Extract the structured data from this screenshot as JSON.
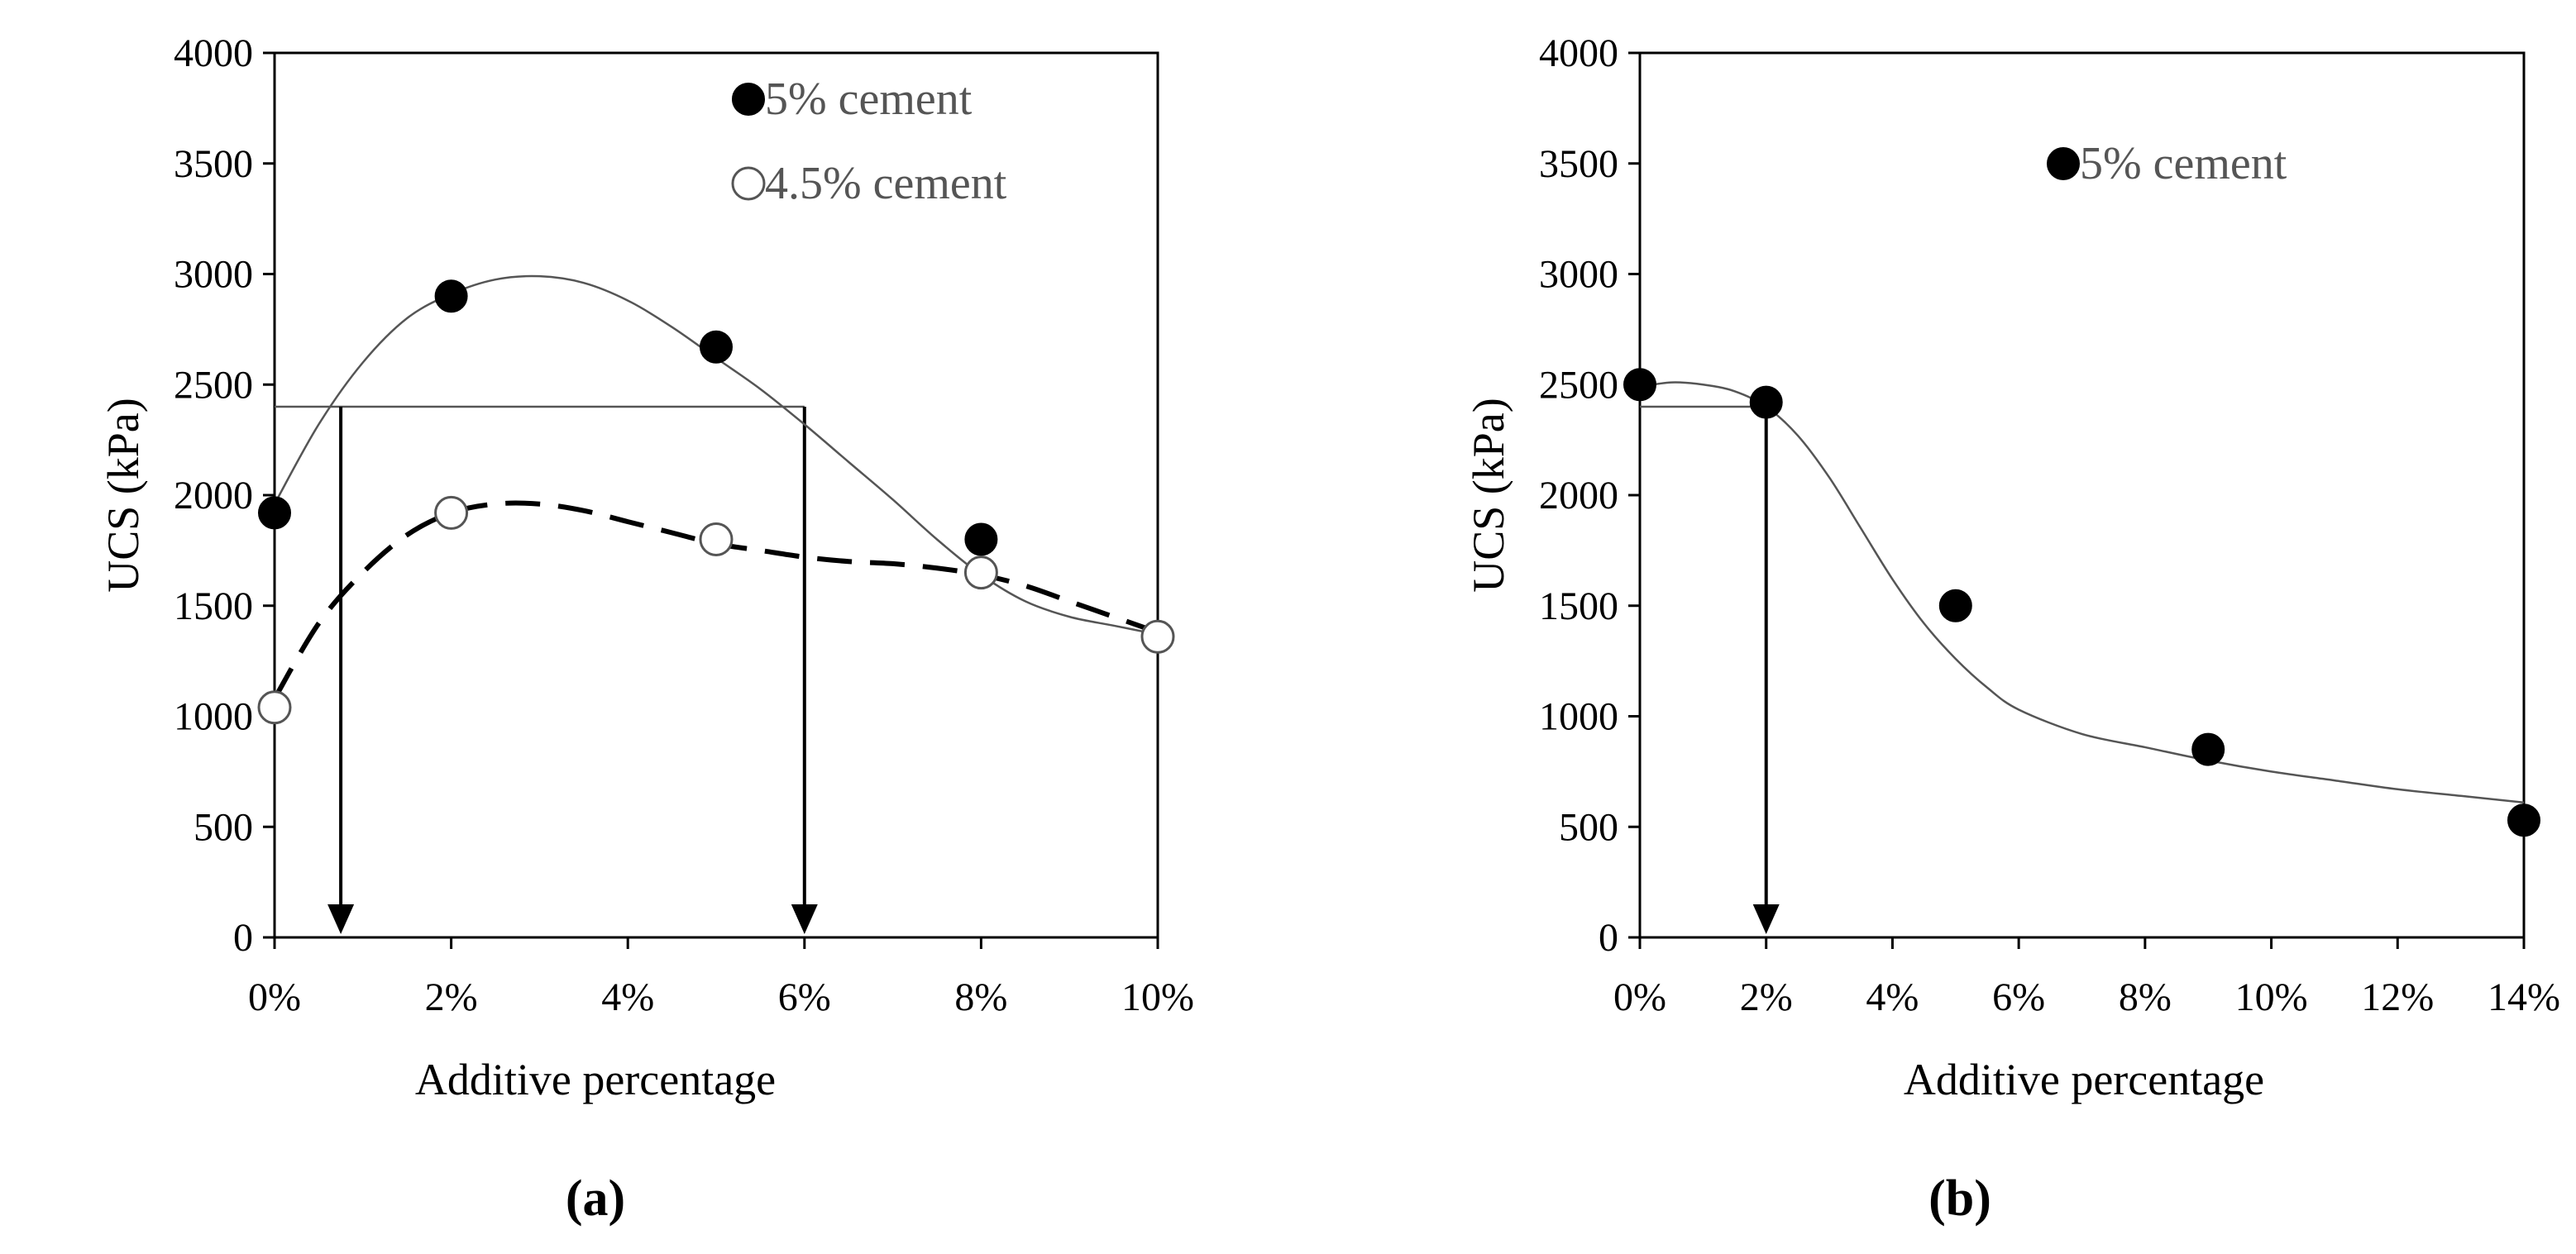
{
  "chart_data": [
    {
      "type": "scatter",
      "panel_label": "(a)",
      "xlabel": "Additive percentage",
      "ylabel": "UCS (kPa)",
      "xlim": [
        0,
        10
      ],
      "ylim": [
        0,
        4000
      ],
      "x_ticks": [
        0,
        2,
        4,
        6,
        8,
        10
      ],
      "x_tick_labels": [
        "0%",
        "2%",
        "4%",
        "6%",
        "8%",
        "10%"
      ],
      "y_ticks": [
        0,
        500,
        1000,
        1500,
        2000,
        2500,
        3000,
        3500,
        4000
      ],
      "y_tick_labels": [
        "0",
        "500",
        "1000",
        "1500",
        "2000",
        "2500",
        "3000",
        "3500",
        "4000"
      ],
      "legend_position": "top-right",
      "series": [
        {
          "name": "5% cement",
          "marker": "filled-circle",
          "trendline": "solid",
          "x": [
            0,
            2,
            5,
            8,
            10
          ],
          "y": [
            1920,
            2900,
            2670,
            1800,
            1360
          ],
          "trend_x": [
            0,
            0.5,
            1,
            1.5,
            2,
            2.5,
            3,
            3.5,
            4,
            4.5,
            5,
            5.5,
            6,
            6.5,
            7,
            7.5,
            8,
            8.5,
            9,
            9.5,
            10
          ],
          "trend_y": [
            1960,
            2320,
            2600,
            2800,
            2910,
            2975,
            2990,
            2960,
            2880,
            2760,
            2620,
            2480,
            2320,
            2150,
            1980,
            1800,
            1640,
            1520,
            1450,
            1410,
            1370
          ]
        },
        {
          "name": "4.5% cement",
          "marker": "open-circle",
          "trendline": "dashed",
          "x": [
            0,
            2,
            5,
            8,
            10
          ],
          "y": [
            1040,
            1920,
            1800,
            1650,
            1360
          ],
          "trend_x": [
            0,
            0.5,
            1,
            1.5,
            2,
            2.5,
            3,
            3.5,
            4,
            4.5,
            5,
            5.5,
            6,
            6.5,
            7,
            7.5,
            8,
            8.5,
            9,
            9.5,
            10
          ],
          "trend_y": [
            1080,
            1420,
            1650,
            1820,
            1920,
            1960,
            1960,
            1930,
            1880,
            1830,
            1780,
            1750,
            1720,
            1700,
            1690,
            1670,
            1640,
            1590,
            1520,
            1450,
            1380
          ]
        }
      ],
      "reference_line_ucs": 2400,
      "reference_arrows_x": [
        0.75,
        6
      ]
    },
    {
      "type": "scatter",
      "panel_label": "(b)",
      "xlabel": "Additive percentage",
      "ylabel": "UCS (kPa)",
      "xlim": [
        0,
        14
      ],
      "ylim": [
        0,
        4000
      ],
      "x_ticks": [
        0,
        2,
        4,
        6,
        8,
        10,
        12,
        14
      ],
      "x_tick_labels": [
        "0%",
        "2%",
        "4%",
        "6%",
        "8%",
        "10%",
        "12%",
        "14%"
      ],
      "y_ticks": [
        0,
        500,
        1000,
        1500,
        2000,
        2500,
        3000,
        3500,
        4000
      ],
      "y_tick_labels": [
        "0",
        "500",
        "1000",
        "1500",
        "2000",
        "2500",
        "3000",
        "3500",
        "4000"
      ],
      "legend_position": "top-right",
      "series": [
        {
          "name": "5% cement",
          "marker": "filled-circle",
          "trendline": "solid",
          "x": [
            0,
            2,
            5,
            9,
            14
          ],
          "y": [
            2500,
            2420,
            1500,
            850,
            530
          ],
          "trend_x": [
            0,
            0.5,
            1,
            1.5,
            2,
            2.5,
            3,
            3.5,
            4,
            4.5,
            5,
            5.5,
            6,
            7,
            8,
            9,
            10,
            11,
            12,
            13,
            14
          ],
          "trend_y": [
            2490,
            2510,
            2500,
            2470,
            2400,
            2270,
            2080,
            1850,
            1620,
            1420,
            1260,
            1130,
            1030,
            920,
            860,
            800,
            750,
            710,
            670,
            640,
            610
          ]
        }
      ],
      "reference_line_ucs": 2400,
      "reference_arrows_x": [
        2
      ]
    }
  ]
}
